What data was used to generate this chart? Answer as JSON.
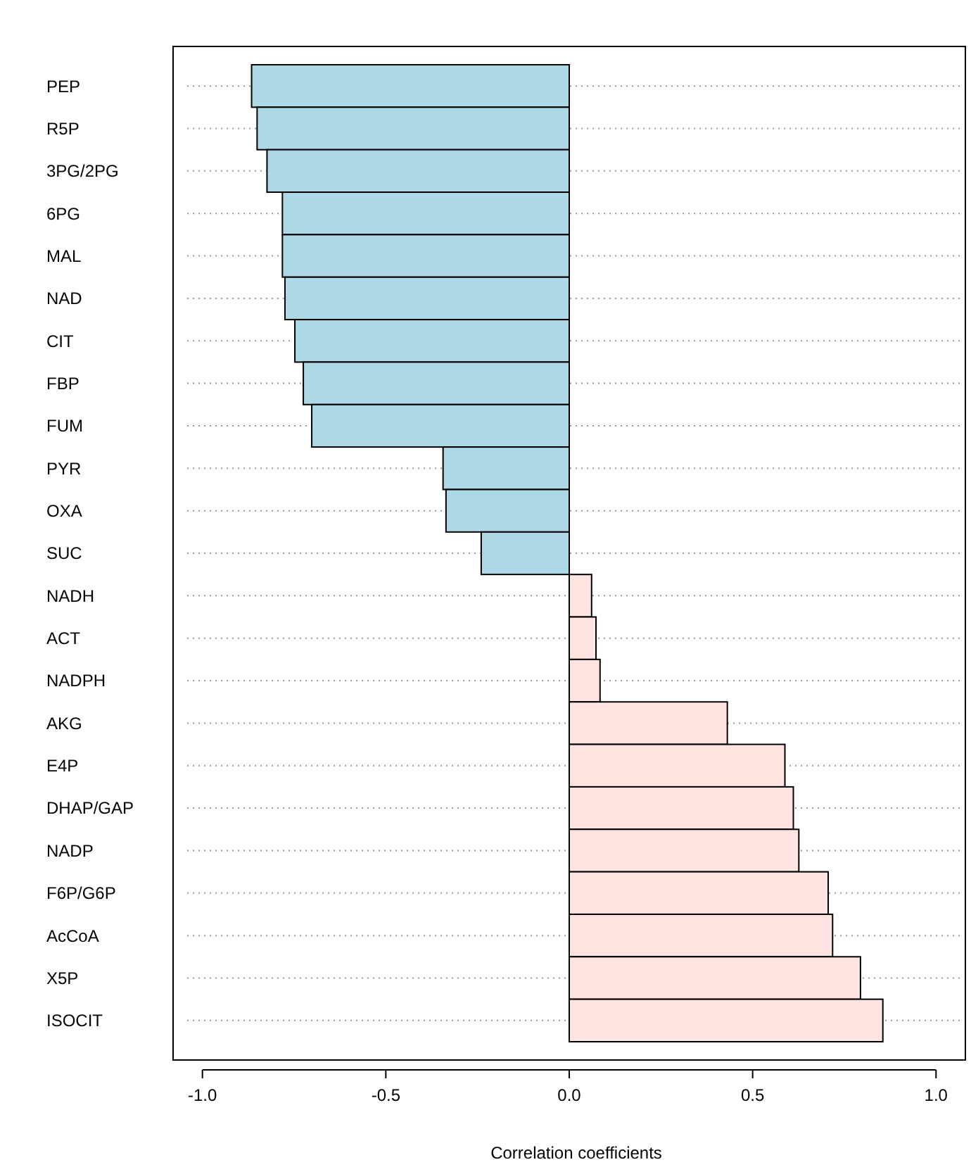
{
  "chart_data": {
    "type": "bar",
    "orientation": "horizontal",
    "xlabel": "Correlation coefficients",
    "categories": [
      "PEP",
      "R5P",
      "3PG/2PG",
      "6PG",
      "MAL",
      "NAD",
      "CIT",
      "FBP",
      "FUM",
      "PYR",
      "OXA",
      "SUC",
      "NADH",
      "ACT",
      "NADPH",
      "AKG",
      "E4P",
      "DHAP/GAP",
      "NADP",
      "F6P/G6P",
      "AcCoA",
      "X5P",
      "ISOCIT"
    ],
    "values": [
      -0.866,
      -0.851,
      -0.824,
      -0.782,
      -0.782,
      -0.775,
      -0.748,
      -0.725,
      -0.702,
      -0.344,
      -0.336,
      -0.24,
      0.061,
      0.073,
      0.084,
      0.431,
      0.588,
      0.611,
      0.626,
      0.706,
      0.718,
      0.794,
      0.855
    ],
    "colors": [
      "#add8e6",
      "#add8e6",
      "#add8e6",
      "#add8e6",
      "#add8e6",
      "#add8e6",
      "#add8e6",
      "#add8e6",
      "#add8e6",
      "#add8e6",
      "#add8e6",
      "#add8e6",
      "#ffe4e1",
      "#ffe4e1",
      "#ffe4e1",
      "#ffe4e1",
      "#ffe4e1",
      "#ffe4e1",
      "#ffe4e1",
      "#ffe4e1",
      "#ffe4e1",
      "#ffe4e1",
      "#ffe4e1"
    ],
    "xlim": [
      -1.08,
      1.08
    ],
    "xticks": [
      {
        "value": -1,
        "label": "-1.0"
      },
      {
        "value": -0.5,
        "label": "-0.5"
      },
      {
        "value": 0,
        "label": "0.0"
      },
      {
        "value": 0.5,
        "label": "0.5"
      },
      {
        "value": 1,
        "label": "1.0"
      }
    ],
    "grid": "y"
  }
}
